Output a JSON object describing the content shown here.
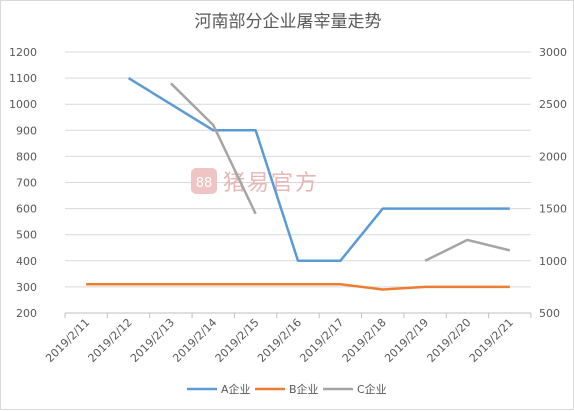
{
  "chart_data": {
    "type": "line",
    "title": "河南部分企业屠宰量走势",
    "categories": [
      "2019/2/11",
      "2019/2/12",
      "2019/2/13",
      "2019/2/14",
      "2019/2/15",
      "2019/2/16",
      "2019/2/17",
      "2019/2/18",
      "2019/2/19",
      "2019/2/20",
      "2019/2/21"
    ],
    "y_left": {
      "min": 200,
      "max": 1200,
      "step": 100
    },
    "y_right": {
      "min": 500,
      "max": 3000,
      "step": 500
    },
    "grid": true,
    "legend_position": "bottom",
    "series": [
      {
        "name": "A企业",
        "axis": "left",
        "color": "#5b9bd5",
        "values": [
          null,
          1100,
          1000,
          900,
          900,
          400,
          400,
          600,
          600,
          600,
          600
        ]
      },
      {
        "name": "B企业",
        "axis": "left",
        "color": "#ed7d31",
        "values": [
          310,
          310,
          310,
          310,
          310,
          310,
          310,
          290,
          300,
          300,
          300
        ]
      },
      {
        "name": "C企业",
        "axis": "right",
        "color": "#a5a5a5",
        "values": [
          null,
          null,
          2700,
          2300,
          1450,
          null,
          null,
          null,
          1000,
          1200,
          1100
        ]
      }
    ],
    "watermark": "猪易官方"
  }
}
